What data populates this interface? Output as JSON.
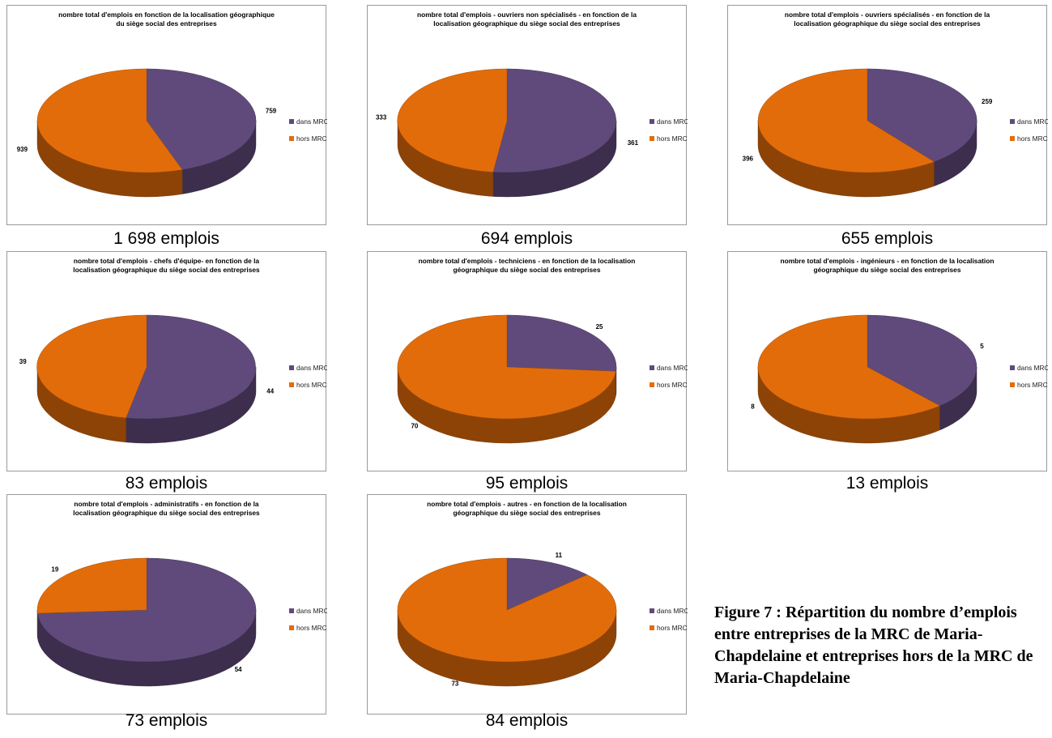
{
  "colors": {
    "dans": "#604a7b",
    "hors": "#e36c0a"
  },
  "legend": {
    "dans": "dans MRC",
    "hors": "hors MRC"
  },
  "figure_caption": "Figure 7 : Répartition du nombre d’emplois entre entreprises de la MRC de Maria-Chapdelaine et entreprises hors de la MRC de Maria-Chapdelaine",
  "chart_data": [
    {
      "type": "pie",
      "title": "nombre total d'emplois en fonction de la localisation géographique\ndu siège social des entreprises",
      "categories": [
        "dans MRC",
        "hors MRC"
      ],
      "values": [
        759,
        939
      ],
      "caption": "1 698 emplois"
    },
    {
      "type": "pie",
      "title": "nombre total d'emplois - ouvriers non spécialisés -  en fonction de la\nlocalisation géographique du siège social des entreprises",
      "categories": [
        "dans MRC",
        "hors MRC"
      ],
      "values": [
        361,
        333
      ],
      "caption": "694 emplois"
    },
    {
      "type": "pie",
      "title": "nombre total d'emplois - ouvriers spécialisés -  en fonction de la\nlocalisation géographique du siège social des entreprises",
      "categories": [
        "dans MRC",
        "hors MRC"
      ],
      "values": [
        259,
        396
      ],
      "caption": "655 emplois"
    },
    {
      "type": "pie",
      "title": "nombre total d'emplois - chefs d'équipe-  en fonction de la\nlocalisation géographique du siège social des entreprises",
      "categories": [
        "dans MRC",
        "hors MRC"
      ],
      "values": [
        44,
        39
      ],
      "caption": "83 emplois"
    },
    {
      "type": "pie",
      "title": "nombre total d'emplois - techniciens - en fonction de la localisation\ngéographique du siège social des entreprises",
      "categories": [
        "dans MRC",
        "hors MRC"
      ],
      "values": [
        25,
        70
      ],
      "caption": "95 emplois"
    },
    {
      "type": "pie",
      "title": "nombre total d'emplois - ingénieurs - en fonction de la localisation\ngéographique du siège social des entreprises",
      "categories": [
        "dans MRC",
        "hors MRC"
      ],
      "values": [
        5,
        8
      ],
      "caption": "13 emplois"
    },
    {
      "type": "pie",
      "title": "nombre total d'emplois - administratifs  - en fonction de la\nlocalisation géographique du siège social des entreprises",
      "categories": [
        "dans MRC",
        "hors MRC"
      ],
      "values": [
        54,
        19
      ],
      "caption": "73 emplois"
    },
    {
      "type": "pie",
      "title": "nombre total d'emplois - autres - en fonction de la localisation\ngéographique du siège social des entreprises",
      "categories": [
        "dans MRC",
        "hors MRC"
      ],
      "values": [
        11,
        73
      ],
      "caption": "84 emplois"
    }
  ]
}
